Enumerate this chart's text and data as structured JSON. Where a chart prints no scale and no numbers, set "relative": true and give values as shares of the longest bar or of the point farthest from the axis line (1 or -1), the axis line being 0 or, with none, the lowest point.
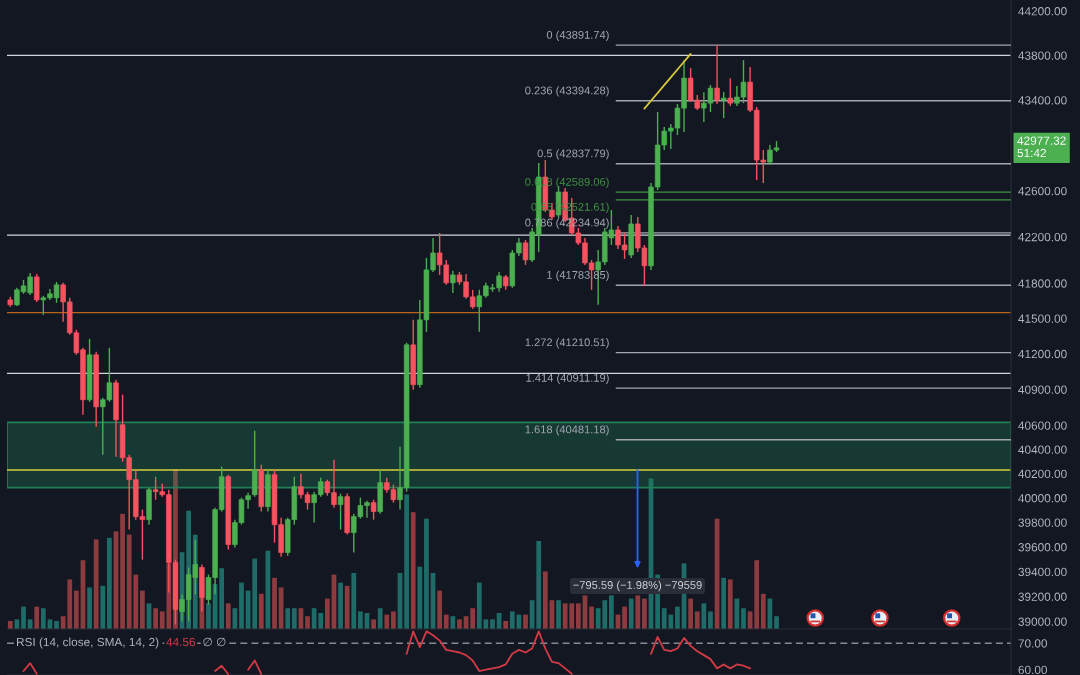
{
  "chart_data": [
    {
      "type": "candlestick",
      "log": true,
      "tick_labels": "y",
      "categories": [
        null,
        null,
        null,
        null,
        null,
        null,
        null,
        null,
        null,
        null,
        null,
        null,
        null,
        null,
        null,
        null,
        null,
        null,
        null,
        null,
        null,
        null,
        null,
        null,
        null,
        null,
        null,
        null,
        null,
        null,
        null,
        null,
        null,
        null,
        null,
        null,
        null,
        null,
        null,
        null,
        null,
        null,
        null,
        null,
        null,
        null,
        null,
        null,
        null,
        null,
        null,
        null,
        null,
        null,
        null,
        null,
        null,
        null,
        null,
        null,
        null,
        null,
        null,
        null,
        null,
        null,
        null,
        null,
        null,
        null,
        null,
        null,
        null,
        null,
        null,
        null,
        null,
        null,
        null,
        null,
        null,
        null,
        null,
        null,
        null,
        null,
        null,
        null,
        null,
        null,
        null,
        null,
        null,
        null,
        null,
        null,
        null,
        null,
        null,
        null,
        null,
        null,
        null,
        null,
        null,
        null,
        null,
        null,
        null,
        null,
        null,
        null,
        null,
        null,
        null,
        null,
        null,
        null,
        null,
        null,
        null,
        null,
        null,
        null,
        null,
        null,
        null,
        null,
        null,
        null,
        null,
        null,
        null,
        null,
        null,
        null,
        null,
        null,
        null,
        null,
        null,
        null,
        null,
        null,
        null,
        null,
        null,
        null,
        null,
        null,
        null,
        null
      ],
      "ohlc": [
        [
          41658,
          41684,
          41599,
          41616
        ],
        [
          41616,
          41761,
          41607,
          41744
        ],
        [
          41727,
          41829,
          41710,
          41778
        ],
        [
          41718,
          41889,
          41701,
          41855
        ],
        [
          41855,
          41881,
          41641,
          41658
        ],
        [
          41658,
          41693,
          41531,
          41676
        ],
        [
          41676,
          41752,
          41658,
          41710
        ],
        [
          41676,
          41812,
          41633,
          41787
        ],
        [
          41787,
          41804,
          41471,
          41641
        ],
        [
          41641,
          41676,
          41361,
          41378
        ],
        [
          41378,
          41403,
          41192,
          41209
        ],
        [
          41234,
          41251,
          40689,
          40814
        ],
        [
          40814,
          41327,
          40797,
          41192
        ],
        [
          41192,
          41217,
          40589,
          40755
        ],
        [
          40755,
          40831,
          40357,
          40814
        ],
        [
          40814,
          41251,
          40797,
          40956
        ],
        [
          40956,
          40981,
          40340,
          40647
        ],
        [
          40605,
          40856,
          40299,
          40332
        ],
        [
          40332,
          40357,
          39742,
          40151
        ],
        [
          40151,
          40233,
          39823,
          39848
        ],
        [
          39848,
          39905,
          39498,
          39823
        ],
        [
          39823,
          40085,
          39782,
          40068
        ],
        [
          40068,
          40175,
          39986,
          40052
        ],
        [
          40052,
          40118,
          40011,
          40027
        ],
        [
          40027,
          40068,
          39232,
          39474
        ],
        [
          39474,
          39498,
          38976,
          39096
        ],
        [
          39080,
          39216,
          39000,
          39176
        ],
        [
          39176,
          39434,
          39000,
          39377
        ],
        [
          39353,
          39660,
          39216,
          39458
        ],
        [
          39434,
          39458,
          39080,
          39192
        ],
        [
          39176,
          39377,
          39136,
          39353
        ],
        [
          39353,
          39921,
          39216,
          39905
        ],
        [
          39905,
          40258,
          39889,
          40175
        ],
        [
          40175,
          40192,
          39579,
          39620
        ],
        [
          39620,
          39823,
          39596,
          39799
        ],
        [
          39799,
          40003,
          39782,
          39986
        ],
        [
          39986,
          40044,
          39913,
          40019
        ],
        [
          40027,
          40556,
          40011,
          40233
        ],
        [
          40233,
          40274,
          39889,
          39929
        ],
        [
          39929,
          40233,
          39889,
          40192
        ],
        [
          40192,
          40233,
          39636,
          39782
        ],
        [
          39782,
          39839,
          39522,
          39555
        ],
        [
          39555,
          39839,
          39530,
          39823
        ],
        [
          39823,
          40175,
          39782,
          40093
        ],
        [
          40093,
          40200,
          39995,
          40027
        ],
        [
          40027,
          40052,
          39905,
          39962
        ],
        [
          39962,
          40052,
          39799,
          40027
        ],
        [
          40027,
          40167,
          40011,
          40134
        ],
        [
          40134,
          40151,
          40019,
          40044
        ],
        [
          40044,
          40315,
          39921,
          39946
        ],
        [
          39946,
          40036,
          39742,
          40011
        ],
        [
          40011,
          40036,
          39701,
          39717
        ],
        [
          39717,
          39872,
          39555,
          39848
        ],
        [
          39848,
          40003,
          39831,
          39938
        ],
        [
          39938,
          39978,
          39839,
          39962
        ],
        [
          39962,
          39986,
          39823,
          39889
        ],
        [
          39889,
          40233,
          39872,
          40126
        ],
        [
          40126,
          40167,
          40044,
          40068
        ],
        [
          40068,
          40110,
          39962,
          39986
        ],
        [
          39986,
          40423,
          39905,
          40085
        ],
        [
          40085,
          41293,
          40052,
          41276
        ],
        [
          41276,
          41488,
          40898,
          40940
        ],
        [
          40940,
          41658,
          40914,
          41488
        ],
        [
          41488,
          42018,
          41386,
          41915
        ],
        [
          41915,
          42191,
          41898,
          42061
        ],
        [
          42061,
          42234,
          41872,
          41958
        ],
        [
          41958,
          42001,
          41787,
          41804
        ],
        [
          41804,
          41907,
          41718,
          41872
        ],
        [
          41872,
          41898,
          41787,
          41812
        ],
        [
          41812,
          41881,
          41667,
          41684
        ],
        [
          41684,
          41744,
          41582,
          41599
        ],
        [
          41599,
          41744,
          41386,
          41693
        ],
        [
          41693,
          41804,
          41676,
          41778
        ],
        [
          41752,
          41795,
          41727,
          41761
        ],
        [
          41761,
          41898,
          41727,
          41864
        ],
        [
          41855,
          41872,
          41744,
          41778
        ],
        [
          41778,
          42087,
          41761,
          42061
        ],
        [
          42061,
          42191,
          42035,
          42148
        ],
        [
          42148,
          42174,
          41958,
          42001
        ],
        [
          42001,
          42277,
          41984,
          42243
        ],
        [
          42217,
          42844,
          42070,
          42721
        ],
        [
          42721,
          42870,
          42416,
          42433
        ],
        [
          42433,
          42494,
          42347,
          42373
        ],
        [
          42390,
          42642,
          42364,
          42590
        ],
        [
          42590,
          42625,
          42329,
          42347
        ],
        [
          42364,
          42538,
          42217,
          42234
        ],
        [
          42234,
          42277,
          42130,
          42148
        ],
        [
          42148,
          42191,
          41958,
          41975
        ],
        [
          41975,
          42001,
          41744,
          41915
        ],
        [
          41915,
          42087,
          41616,
          41984
        ],
        [
          41984,
          42277,
          41958,
          42243
        ],
        [
          42191,
          42433,
          42130,
          42260
        ],
        [
          42260,
          42295,
          42096,
          42130
        ],
        [
          42130,
          42234,
          42010,
          42087
        ],
        [
          42044,
          42390,
          42018,
          42312
        ],
        [
          42312,
          42373,
          42070,
          42104
        ],
        [
          42104,
          42130,
          41783.85,
          41950
        ],
        [
          41950,
          42669,
          41915,
          42634
        ],
        [
          42634,
          43294,
          42608,
          43002
        ],
        [
          43002,
          43161,
          42958,
          43125
        ],
        [
          43125,
          43188,
          42967,
          43152
        ],
        [
          43152,
          43365,
          43090,
          43329
        ],
        [
          43329,
          43757,
          43117,
          43596
        ],
        [
          43596,
          43686,
          43383,
          43400
        ],
        [
          43400,
          43445,
          43311,
          43329
        ],
        [
          43329,
          43471,
          43205,
          43373
        ],
        [
          43373,
          43534,
          43294,
          43507
        ],
        [
          43507,
          43891.74,
          43365,
          43400
        ],
        [
          43400,
          43471,
          43240,
          43418
        ],
        [
          43418,
          43596,
          43347,
          43373
        ],
        [
          43373,
          43525,
          43347,
          43427
        ],
        [
          43427,
          43757,
          43373,
          43560
        ],
        [
          43560,
          43695,
          43294,
          43311
        ],
        [
          43311,
          43338,
          42695,
          42870
        ],
        [
          42870,
          42958,
          42669,
          42852
        ],
        [
          42852,
          43002,
          42826,
          42958
        ],
        [
          42958,
          43037,
          42940,
          42977.32
        ],
        null,
        null,
        null,
        null,
        null,
        null,
        null,
        null,
        null,
        null,
        null,
        null,
        null,
        null,
        null,
        null,
        null,
        null,
        null,
        null,
        null,
        null,
        null,
        null,
        null,
        null,
        null,
        null,
        null,
        null,
        null,
        null,
        null,
        null,
        null
      ],
      "colors": [
        "#f7525f",
        "#4caf50",
        "#4caf50",
        "#4caf50",
        "#f7525f",
        "#4caf50",
        "#4caf50",
        "#4caf50",
        "#f7525f",
        "#f7525f",
        "#f7525f",
        "#f7525f",
        "#4caf50",
        "#f7525f",
        "#4caf50",
        "#4caf50",
        "#f7525f",
        "#f7525f",
        "#f7525f",
        "#f7525f",
        "#f7525f",
        "#4caf50",
        "#f7525f",
        "#f7525f",
        "#f7525f",
        "#f7525f",
        "#4caf50",
        "#4caf50",
        "#4caf50",
        "#f7525f",
        "#4caf50",
        "#4caf50",
        "#4caf50",
        "#f7525f",
        "#4caf50",
        "#4caf50",
        "#4caf50",
        "#4caf50",
        "#f7525f",
        "#4caf50",
        "#f7525f",
        "#f7525f",
        "#4caf50",
        "#4caf50",
        "#f7525f",
        "#f7525f",
        "#4caf50",
        "#4caf50",
        "#f7525f",
        "#f7525f",
        "#4caf50",
        "#f7525f",
        "#4caf50",
        "#4caf50",
        "#4caf50",
        "#f7525f",
        "#4caf50",
        "#f7525f",
        "#f7525f",
        "#4caf50",
        "#4caf50",
        "#f7525f",
        "#4caf50",
        "#4caf50",
        "#4caf50",
        "#f7525f",
        "#f7525f",
        "#4caf50",
        "#f7525f",
        "#f7525f",
        "#f7525f",
        "#4caf50",
        "#4caf50",
        "#4caf50",
        "#4caf50",
        "#f7525f",
        "#4caf50",
        "#4caf50",
        "#f7525f",
        "#4caf50",
        "#4caf50",
        "#f7525f",
        "#f7525f",
        "#4caf50",
        "#f7525f",
        "#f7525f",
        "#f7525f",
        "#f7525f",
        "#f7525f",
        "#4caf50",
        "#4caf50",
        "#4caf50",
        "#f7525f",
        "#f7525f",
        "#4caf50",
        "#f7525f",
        "#f7525f",
        "#4caf50",
        "#4caf50",
        "#4caf50",
        "#4caf50",
        "#4caf50",
        "#4caf50",
        "#f7525f",
        "#f7525f",
        "#4caf50",
        "#4caf50",
        "#f7525f",
        "#4caf50",
        "#f7525f",
        "#4caf50",
        "#4caf50",
        "#f7525f",
        "#f7525f",
        "#f7525f",
        "#4caf50",
        "#4caf50",
        null,
        null,
        null,
        null,
        null,
        null,
        null,
        null,
        null,
        null,
        null,
        null,
        null,
        null,
        null,
        null,
        null,
        null,
        null,
        null,
        null,
        null,
        null,
        null,
        null,
        null,
        null,
        null,
        null,
        null,
        null,
        null,
        null,
        null,
        null
      ],
      "ylim": [
        38940,
        44300
      ],
      "yticks": [
        {
          "value": 44200,
          "label": "44200.00"
        },
        {
          "value": 43800,
          "label": "43800.00"
        },
        {
          "value": 43400,
          "label": "43400.00"
        },
        {
          "value": 42600,
          "label": "42600.00"
        },
        {
          "value": 42200,
          "label": "42200.00"
        },
        {
          "value": 41800,
          "label": "41800.00"
        },
        {
          "value": 41500,
          "label": "41500.00"
        },
        {
          "value": 41200,
          "label": "41200.00"
        },
        {
          "value": 40900,
          "label": "40900.00"
        },
        {
          "value": 40600,
          "label": "40600.00"
        },
        {
          "value": 40400,
          "label": "40400.00"
        },
        {
          "value": 40200,
          "label": "40200.00"
        },
        {
          "value": 40000,
          "label": "40000.00"
        },
        {
          "value": 39800,
          "label": "39800.00"
        },
        {
          "value": 39600,
          "label": "39600.00"
        },
        {
          "value": 39400,
          "label": "39400.00"
        },
        {
          "value": 39200,
          "label": "39200.00"
        },
        {
          "value": 39000,
          "label": "39000.00"
        }
      ],
      "series": [
        {
          "type": "line",
          "color": "#d9c93a",
          "values": [
            null,
            null,
            null,
            null,
            null,
            null,
            null,
            null,
            null,
            null,
            null,
            null,
            null,
            null,
            null,
            null,
            null,
            null,
            null,
            null,
            null,
            null,
            null,
            null,
            null,
            null,
            null,
            null,
            null,
            null,
            null,
            null,
            null,
            null,
            null,
            null,
            null,
            null,
            null,
            null,
            null,
            null,
            null,
            null,
            null,
            null,
            null,
            null,
            null,
            null,
            null,
            null,
            null,
            null,
            null,
            null,
            null,
            null,
            null,
            null,
            null,
            null,
            null,
            null,
            null,
            null,
            null,
            null,
            null,
            null,
            null,
            null,
            null,
            null,
            null,
            null,
            null,
            null,
            null,
            null,
            null,
            null,
            null,
            null,
            null,
            null,
            null,
            null,
            null,
            null,
            null,
            null,
            null,
            null,
            null,
            null,
            43325,
            43394,
            43463,
            43533,
            43602,
            43673,
            43743,
            43813,
            null,
            null,
            null,
            null,
            null,
            null,
            null,
            null,
            null,
            null,
            null,
            null,
            null,
            null,
            null,
            null,
            null,
            null,
            null,
            null,
            null,
            null,
            null,
            null,
            null,
            null,
            null,
            null,
            null,
            null,
            null,
            null,
            null,
            null,
            null,
            null,
            null,
            null,
            null,
            null,
            null,
            null,
            null,
            null,
            null,
            null,
            null,
            null
          ]
        }
      ],
      "ref_lines": [
        {
          "axis": "y",
          "value": 43891.74,
          "label": "0 (43891.74)",
          "color": "#a3a6af"
        },
        {
          "axis": "y",
          "value": 43394.28,
          "label": "0.236 (43394.28)",
          "color": "#a3a6af"
        },
        {
          "axis": "y",
          "value": 42837.79,
          "label": "0.5 (42837.79)",
          "color": "#a3a6af"
        },
        {
          "axis": "y",
          "value": 42589.06,
          "label": "0.618 (42589.06)",
          "color": "#3f9142"
        },
        {
          "axis": "y",
          "value": 42521.61,
          "label": "0.65 (42521.61)",
          "color": "#3f9142"
        },
        {
          "axis": "y",
          "value": 42234.94,
          "label": "0.786 (42234.94)",
          "color": "#a3a6af"
        },
        {
          "axis": "y",
          "value": 41783.85,
          "label": "1 (41783.85)",
          "color": "#a3a6af"
        },
        {
          "axis": "y",
          "value": 41210.51,
          "label": "1.272 (41210.51)",
          "color": "#a3a6af"
        },
        {
          "axis": "y",
          "value": 40911.19,
          "label": "1.414 (40911.19)",
          "color": "#a3a6af"
        },
        {
          "axis": "y",
          "value": 40481.18,
          "label": "1.618 (40481.18)",
          "color": "#a3a6af"
        },
        {
          "axis": "y",
          "value": 43800,
          "color": "#d1d4dc"
        },
        {
          "axis": "y",
          "value": 42215,
          "color": "#d1d4dc"
        },
        {
          "axis": "y",
          "value": 41550,
          "color": "#b8651c"
        },
        {
          "axis": "y",
          "value": 41035,
          "color": "#d1d4dc"
        },
        {
          "axis": "y",
          "value": 40230,
          "color": "#d8cc3c"
        }
      ],
      "bands": [
        {
          "axis": "y",
          "from": 40085,
          "to": 40625,
          "color": "#22835a"
        }
      ],
      "annotations": [
        "−795.59 (−1.98%) −79559",
        "42977.32\n51:42"
      ]
    },
    {
      "type": "bar",
      "relative": true,
      "tick_labels": false,
      "categories": [
        null,
        null,
        null,
        null,
        null,
        null,
        null,
        null,
        null,
        null,
        null,
        null,
        null,
        null,
        null,
        null,
        null,
        null,
        null,
        null,
        null,
        null,
        null,
        null,
        null,
        null,
        null,
        null,
        null,
        null,
        null,
        null,
        null,
        null,
        null,
        null,
        null,
        null,
        null,
        null,
        null,
        null,
        null,
        null,
        null,
        null,
        null,
        null,
        null,
        null,
        null,
        null,
        null,
        null,
        null,
        null,
        null,
        null,
        null,
        null,
        null,
        null,
        null,
        null,
        null,
        null,
        null,
        null,
        null,
        null,
        null,
        null,
        null,
        null,
        null,
        null,
        null,
        null,
        null,
        null,
        null,
        null,
        null,
        null,
        null,
        null,
        null,
        null,
        null,
        null,
        null,
        null,
        null,
        null,
        null,
        null,
        null,
        null,
        null,
        null,
        null,
        null,
        null,
        null,
        null,
        null,
        null,
        null,
        null,
        null,
        null,
        null,
        null,
        null,
        null,
        null,
        null,
        null,
        null,
        null,
        null,
        null,
        null,
        null,
        null,
        null,
        null,
        null,
        null,
        null,
        null,
        null,
        null,
        null,
        null,
        null,
        null,
        null,
        null,
        null,
        null,
        null,
        null,
        null,
        null,
        null,
        null,
        null,
        null,
        null,
        null,
        null
      ],
      "values": [
        0.05,
        0.06,
        0.14,
        0.06,
        0.14,
        0.13,
        0.06,
        0.05,
        0.08,
        0.31,
        0.24,
        0.43,
        0.26,
        0.56,
        0.27,
        0.57,
        0.61,
        0.72,
        0.59,
        0.34,
        0.24,
        0.16,
        0.13,
        0.11,
        0.41,
        1,
        0.48,
        0.74,
        0.59,
        0.3,
        0.16,
        0.28,
        0.38,
        0.16,
        0.13,
        0.29,
        0.24,
        0.44,
        0.22,
        0.49,
        0.32,
        0.26,
        0.13,
        0.13,
        0.13,
        0.08,
        0.13,
        0.1,
        0.19,
        0.34,
        0.29,
        0.27,
        0.35,
        0.11,
        0.1,
        0.06,
        0.13,
        0.09,
        0.11,
        0.35,
        0.84,
        0.73,
        0.39,
        0.69,
        0.35,
        0.24,
        0.09,
        0.08,
        0.06,
        0.08,
        0.13,
        0.29,
        0.06,
        0.06,
        0.1,
        0.05,
        0.11,
        0.09,
        0.09,
        0.18,
        0.55,
        0.36,
        0.18,
        0.18,
        0.16,
        0.16,
        0.16,
        0.21,
        0.14,
        0.13,
        0.18,
        0.21,
        0.09,
        0.14,
        0.19,
        0.21,
        0.19,
        0.94,
        0.34,
        0.13,
        0.09,
        0.14,
        0.41,
        0.19,
        0.11,
        0.16,
        0.11,
        0.69,
        0.32,
        0.31,
        0.19,
        0.13,
        0.11,
        0.43,
        0.22,
        0.19,
        0.08,
        null,
        null,
        null,
        null,
        null,
        null,
        null,
        null,
        null,
        null,
        null,
        null,
        null,
        null,
        null,
        null,
        null,
        null,
        null,
        null,
        null,
        null,
        null,
        null,
        null,
        null,
        null,
        null,
        null,
        null,
        null,
        null,
        null,
        null,
        null
      ],
      "colors": [
        "#8c3b3f",
        "#1f6b68",
        "#1f6b68",
        "#1f6b68",
        "#8c3b3f",
        "#1f6b68",
        "#1f6b68",
        "#1f6b68",
        "#8c3b3f",
        "#8c3b3f",
        "#8c3b3f",
        "#8c3b3f",
        "#1f6b68",
        "#8c3b3f",
        "#1f6b68",
        "#1f6b68",
        "#8c3b3f",
        "#8c3b3f",
        "#8c3b3f",
        "#8c3b3f",
        "#8c3b3f",
        "#1f6b68",
        "#8c3b3f",
        "#8c3b3f",
        "#8c3b3f",
        "#8c3b3f",
        "#1f6b68",
        "#1f6b68",
        "#1f6b68",
        "#8c3b3f",
        "#1f6b68",
        "#1f6b68",
        "#1f6b68",
        "#8c3b3f",
        "#1f6b68",
        "#1f6b68",
        "#1f6b68",
        "#1f6b68",
        "#8c3b3f",
        "#1f6b68",
        "#8c3b3f",
        "#8c3b3f",
        "#1f6b68",
        "#1f6b68",
        "#8c3b3f",
        "#8c3b3f",
        "#1f6b68",
        "#1f6b68",
        "#8c3b3f",
        "#8c3b3f",
        "#1f6b68",
        "#8c3b3f",
        "#1f6b68",
        "#1f6b68",
        "#1f6b68",
        "#8c3b3f",
        "#1f6b68",
        "#8c3b3f",
        "#8c3b3f",
        "#1f6b68",
        "#1f6b68",
        "#8c3b3f",
        "#1f6b68",
        "#1f6b68",
        "#1f6b68",
        "#8c3b3f",
        "#8c3b3f",
        "#1f6b68",
        "#8c3b3f",
        "#8c3b3f",
        "#8c3b3f",
        "#1f6b68",
        "#1f6b68",
        "#1f6b68",
        "#1f6b68",
        "#8c3b3f",
        "#1f6b68",
        "#1f6b68",
        "#8c3b3f",
        "#1f6b68",
        "#1f6b68",
        "#8c3b3f",
        "#8c3b3f",
        "#1f6b68",
        "#8c3b3f",
        "#8c3b3f",
        "#8c3b3f",
        "#8c3b3f",
        "#8c3b3f",
        "#1f6b68",
        "#1f6b68",
        "#1f6b68",
        "#8c3b3f",
        "#8c3b3f",
        "#1f6b68",
        "#8c3b3f",
        "#8c3b3f",
        "#1f6b68",
        "#1f6b68",
        "#1f6b68",
        "#1f6b68",
        "#1f6b68",
        "#1f6b68",
        "#8c3b3f",
        "#8c3b3f",
        "#1f6b68",
        "#1f6b68",
        "#8c3b3f",
        "#1f6b68",
        "#8c3b3f",
        "#1f6b68",
        "#1f6b68",
        "#8c3b3f",
        "#8c3b3f",
        "#8c3b3f",
        "#1f6b68",
        "#1f6b68",
        null,
        null,
        null,
        null,
        null,
        null,
        null,
        null,
        null,
        null,
        null,
        null,
        null,
        null,
        null,
        null,
        null,
        null,
        null,
        null,
        null,
        null,
        null,
        null,
        null,
        null,
        null,
        null,
        null,
        null,
        null,
        null,
        null,
        null,
        null
      ]
    },
    {
      "type": "line",
      "tick_labels": "y",
      "title": "RSI (14, close, SMA, 14, 2)",
      "categories": [
        null,
        null,
        null,
        null,
        null,
        null,
        null,
        null,
        null,
        null,
        null,
        null,
        null,
        null,
        null,
        null,
        null,
        null,
        null,
        null,
        null,
        null,
        null,
        null,
        null,
        null,
        null,
        null,
        null,
        null,
        null,
        null,
        null,
        null,
        null,
        null,
        null,
        null,
        null,
        null,
        null,
        null,
        null,
        null,
        null,
        null,
        null,
        null,
        null,
        null,
        null,
        null,
        null,
        null,
        null,
        null,
        null,
        null,
        null,
        null,
        null,
        null,
        null,
        null,
        null,
        null,
        null,
        null,
        null,
        null,
        null,
        null,
        null,
        null,
        null,
        null,
        null,
        null,
        null,
        null,
        null,
        null,
        null,
        null,
        null,
        null,
        null,
        null,
        null,
        null,
        null,
        null,
        null,
        null,
        null,
        null,
        null,
        null,
        null,
        null,
        null,
        null,
        null,
        null,
        null,
        null,
        null,
        null,
        null,
        null,
        null,
        null,
        null,
        null,
        null,
        null,
        null,
        null,
        null,
        null,
        null,
        null,
        null,
        null,
        null,
        null,
        null,
        null,
        null,
        null,
        null,
        null,
        null,
        null,
        null,
        null,
        null,
        null,
        null,
        null,
        null,
        null,
        null,
        null,
        null,
        null,
        null,
        null,
        null,
        null,
        null,
        null
      ],
      "ylim": [
        58,
        75
      ],
      "yticks": [
        {
          "value": 70,
          "label": "70.00"
        },
        {
          "value": 60,
          "label": "60.00"
        }
      ],
      "ref_lines": [
        {
          "axis": "y",
          "value": 70,
          "color": "#868993",
          "line_style": "dashed"
        }
      ],
      "series": [
        {
          "color": "#d23a45",
          "values": [
            null,
            null,
            59.5,
            62.5,
            58.5,
            null,
            null,
            null,
            null,
            null,
            null,
            null,
            null,
            null,
            null,
            null,
            null,
            null,
            null,
            null,
            null,
            null,
            null,
            null,
            null,
            null,
            null,
            null,
            null,
            null,
            null,
            59.5,
            61.5,
            58.3,
            null,
            null,
            60,
            63.5,
            58.3,
            null,
            null,
            null,
            null,
            null,
            null,
            null,
            null,
            null,
            null,
            null,
            null,
            null,
            null,
            null,
            null,
            null,
            null,
            null,
            null,
            null,
            66,
            74.5,
            68.5,
            74.5,
            73,
            71,
            67.5,
            67,
            66.5,
            65.5,
            63.5,
            59.5,
            60,
            60.5,
            61,
            62,
            66,
            67.5,
            66.5,
            68,
            74.5,
            68,
            63,
            62.5,
            60.5,
            58.5,
            null,
            null,
            null,
            null,
            null,
            null,
            null,
            null,
            null,
            null,
            null,
            66,
            72.4,
            67.5,
            67,
            68,
            72,
            69,
            67,
            65.5,
            64,
            60.5,
            62,
            60.5,
            62,
            61.5,
            60.5,
            null,
            null,
            null,
            null,
            null,
            null,
            null,
            null,
            null,
            null,
            null,
            null,
            null,
            null,
            null,
            null,
            null,
            null,
            null,
            null,
            null,
            null,
            null,
            null,
            null,
            null,
            null,
            null,
            null,
            null,
            null,
            null,
            null,
            null,
            null,
            null,
            null,
            null,
            null
          ]
        }
      ],
      "annotations": [
        "44.56",
        "∅ ∅"
      ]
    }
  ]
}
